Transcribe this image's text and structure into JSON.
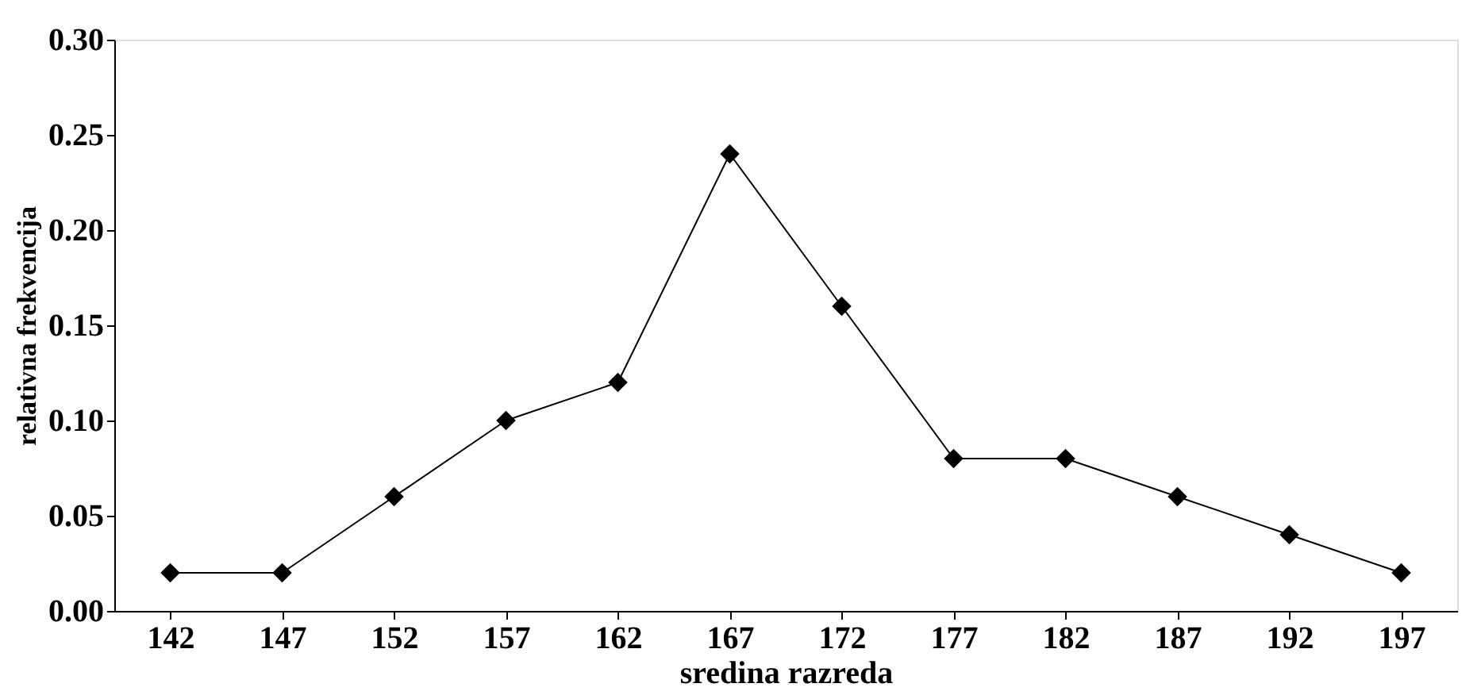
{
  "chart_data": {
    "type": "line",
    "xlabel": "sredina razreda",
    "ylabel": "relativna frekvencija",
    "categories": [
      "142",
      "147",
      "152",
      "157",
      "162",
      "167",
      "172",
      "177",
      "182",
      "187",
      "192",
      "197"
    ],
    "series": [
      {
        "color": "#000000",
        "values": [
          0.02,
          0.02,
          0.06,
          0.1,
          0.12,
          0.24,
          0.16,
          0.08,
          0.08,
          0.06,
          0.04,
          0.02
        ]
      }
    ],
    "ylim": [
      0,
      0.3
    ],
    "yticks": [
      {
        "value": 0,
        "label": "0.00"
      },
      {
        "value": 0.05,
        "label": "0.05"
      },
      {
        "value": 0.1,
        "label": "0.10"
      },
      {
        "value": 0.15,
        "label": "0.15"
      },
      {
        "value": 0.2,
        "label": "0.20"
      },
      {
        "value": 0.25,
        "label": "0.25"
      },
      {
        "value": 0.3,
        "label": "0.30"
      }
    ],
    "grid": false,
    "marker": "diamond",
    "line_style": "solid"
  }
}
